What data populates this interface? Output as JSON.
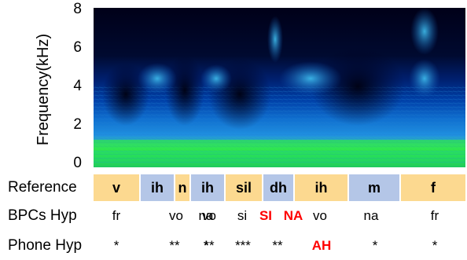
{
  "chart_data": {
    "type": "heatmap",
    "ylabel": "Frequency(kHz)",
    "yticks": [
      0,
      2,
      4,
      6,
      8
    ],
    "ylim": [
      0,
      8
    ],
    "colormap": [
      "#000020",
      "#001a60",
      "#0040b0",
      "#1080e0",
      "#30c0f0",
      "#40e090",
      "#20f020"
    ]
  },
  "rows": {
    "reference_label": "Reference",
    "bpcs_label": "BPCs Hyp",
    "phone_label": "Phone Hyp"
  },
  "reference": [
    {
      "label": "v",
      "color": "#fcd990"
    },
    {
      "label": "ih",
      "color": "#b4c6e7"
    },
    {
      "label": "n",
      "color": "#fcd990"
    },
    {
      "label": "ih",
      "color": "#b4c6e7"
    },
    {
      "label": "sil",
      "color": "#fcd990"
    },
    {
      "label": "dh",
      "color": "#b4c6e7"
    },
    {
      "label": "ih",
      "color": "#fcd990"
    },
    {
      "label": "m",
      "color": "#b4c6e7"
    },
    {
      "label": "f",
      "color": "#fcd990"
    }
  ],
  "bpcs_hyp": [
    {
      "label": "fr",
      "error": false
    },
    {
      "label": "vo",
      "error": false
    },
    {
      "label": "na",
      "error": false
    },
    {
      "label": "vo",
      "error": false
    },
    {
      "label": "si",
      "error": false
    },
    {
      "label": "SI",
      "error": true
    },
    {
      "label": "NA",
      "error": true
    },
    {
      "label": "vo",
      "error": false
    },
    {
      "label": "na",
      "error": false
    },
    {
      "label": "fr",
      "error": false
    }
  ],
  "phone_hyp": [
    {
      "label": "*",
      "error": false
    },
    {
      "label": "**",
      "error": false
    },
    {
      "label": "*",
      "error": false
    },
    {
      "label": "**",
      "error": false
    },
    {
      "label": "***",
      "error": false
    },
    {
      "label": "**",
      "error": false
    },
    {
      "label": "AH",
      "error": true
    },
    {
      "label": "*",
      "error": false
    },
    {
      "label": "*",
      "error": false
    }
  ],
  "error_color": "#ff0000"
}
